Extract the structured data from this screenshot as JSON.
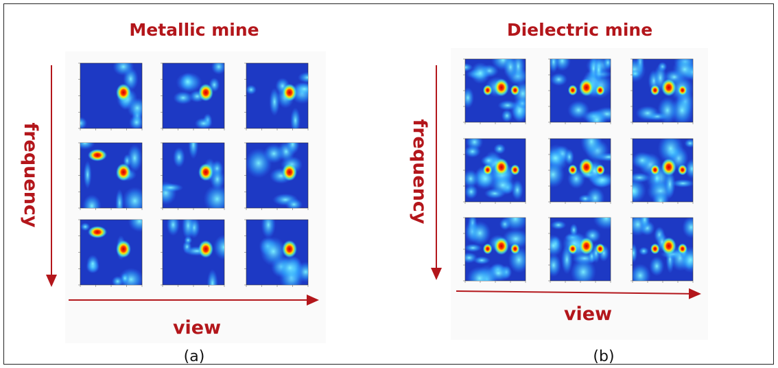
{
  "panels": [
    {
      "title": "Metallic mine",
      "y_label": "frequency",
      "x_label": "view",
      "caption": "(a)"
    },
    {
      "title": "Dielectric mine",
      "y_label": "frequency",
      "x_label": "view",
      "caption": "(b)"
    }
  ]
}
